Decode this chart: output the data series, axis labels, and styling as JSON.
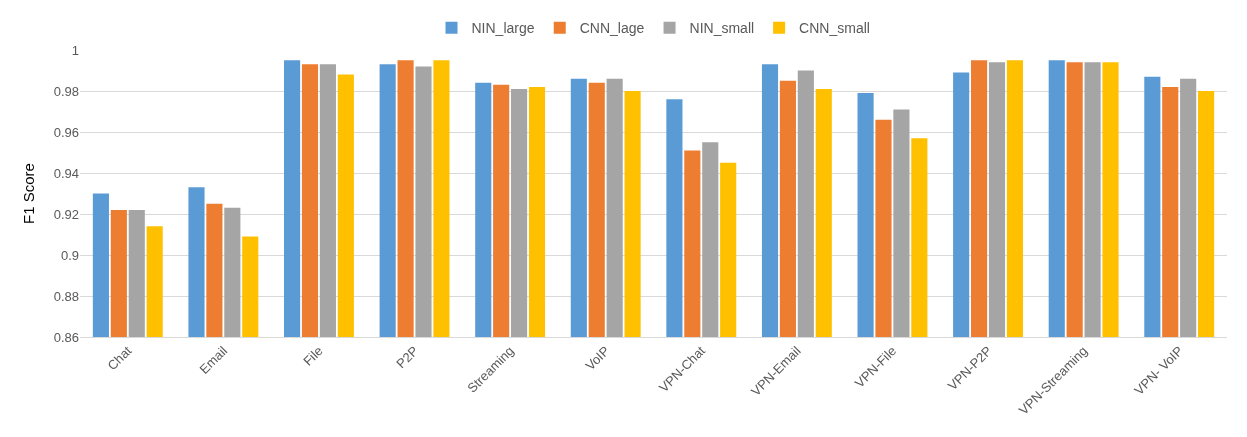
{
  "chart_data": {
    "type": "bar",
    "ylabel": "F1 Score",
    "categories": [
      "Chat",
      "Email",
      "File",
      "P2P",
      "Streaming",
      "VoIP",
      "VPN-Chat",
      "VPN-Email",
      "VPN-File",
      "VPN-P2P",
      "VPN-Streaming",
      "VPN- VoIP"
    ],
    "series": [
      {
        "name": "NIN_large",
        "color": "#5b9bd5",
        "values": [
          0.93,
          0.933,
          0.995,
          0.993,
          0.984,
          0.986,
          0.976,
          0.993,
          0.979,
          0.989,
          0.995,
          0.987
        ]
      },
      {
        "name": "CNN_lage",
        "color": "#ed7d31",
        "values": [
          0.922,
          0.925,
          0.993,
          0.995,
          0.983,
          0.984,
          0.951,
          0.985,
          0.966,
          0.995,
          0.994,
          0.982
        ]
      },
      {
        "name": "NIN_small",
        "color": "#a5a5a5",
        "values": [
          0.922,
          0.923,
          0.993,
          0.992,
          0.981,
          0.986,
          0.955,
          0.99,
          0.971,
          0.994,
          0.994,
          0.986
        ]
      },
      {
        "name": "CNN_small",
        "color": "#ffc000",
        "values": [
          0.914,
          0.909,
          0.988,
          0.995,
          0.982,
          0.98,
          0.945,
          0.981,
          0.957,
          0.995,
          0.994,
          0.98
        ]
      }
    ],
    "ylim": [
      0.86,
      1
    ],
    "yticks": [
      0.86,
      0.88,
      0.9,
      0.92,
      0.94,
      0.96,
      0.98,
      1
    ],
    "grid": "y",
    "legend": "top"
  }
}
